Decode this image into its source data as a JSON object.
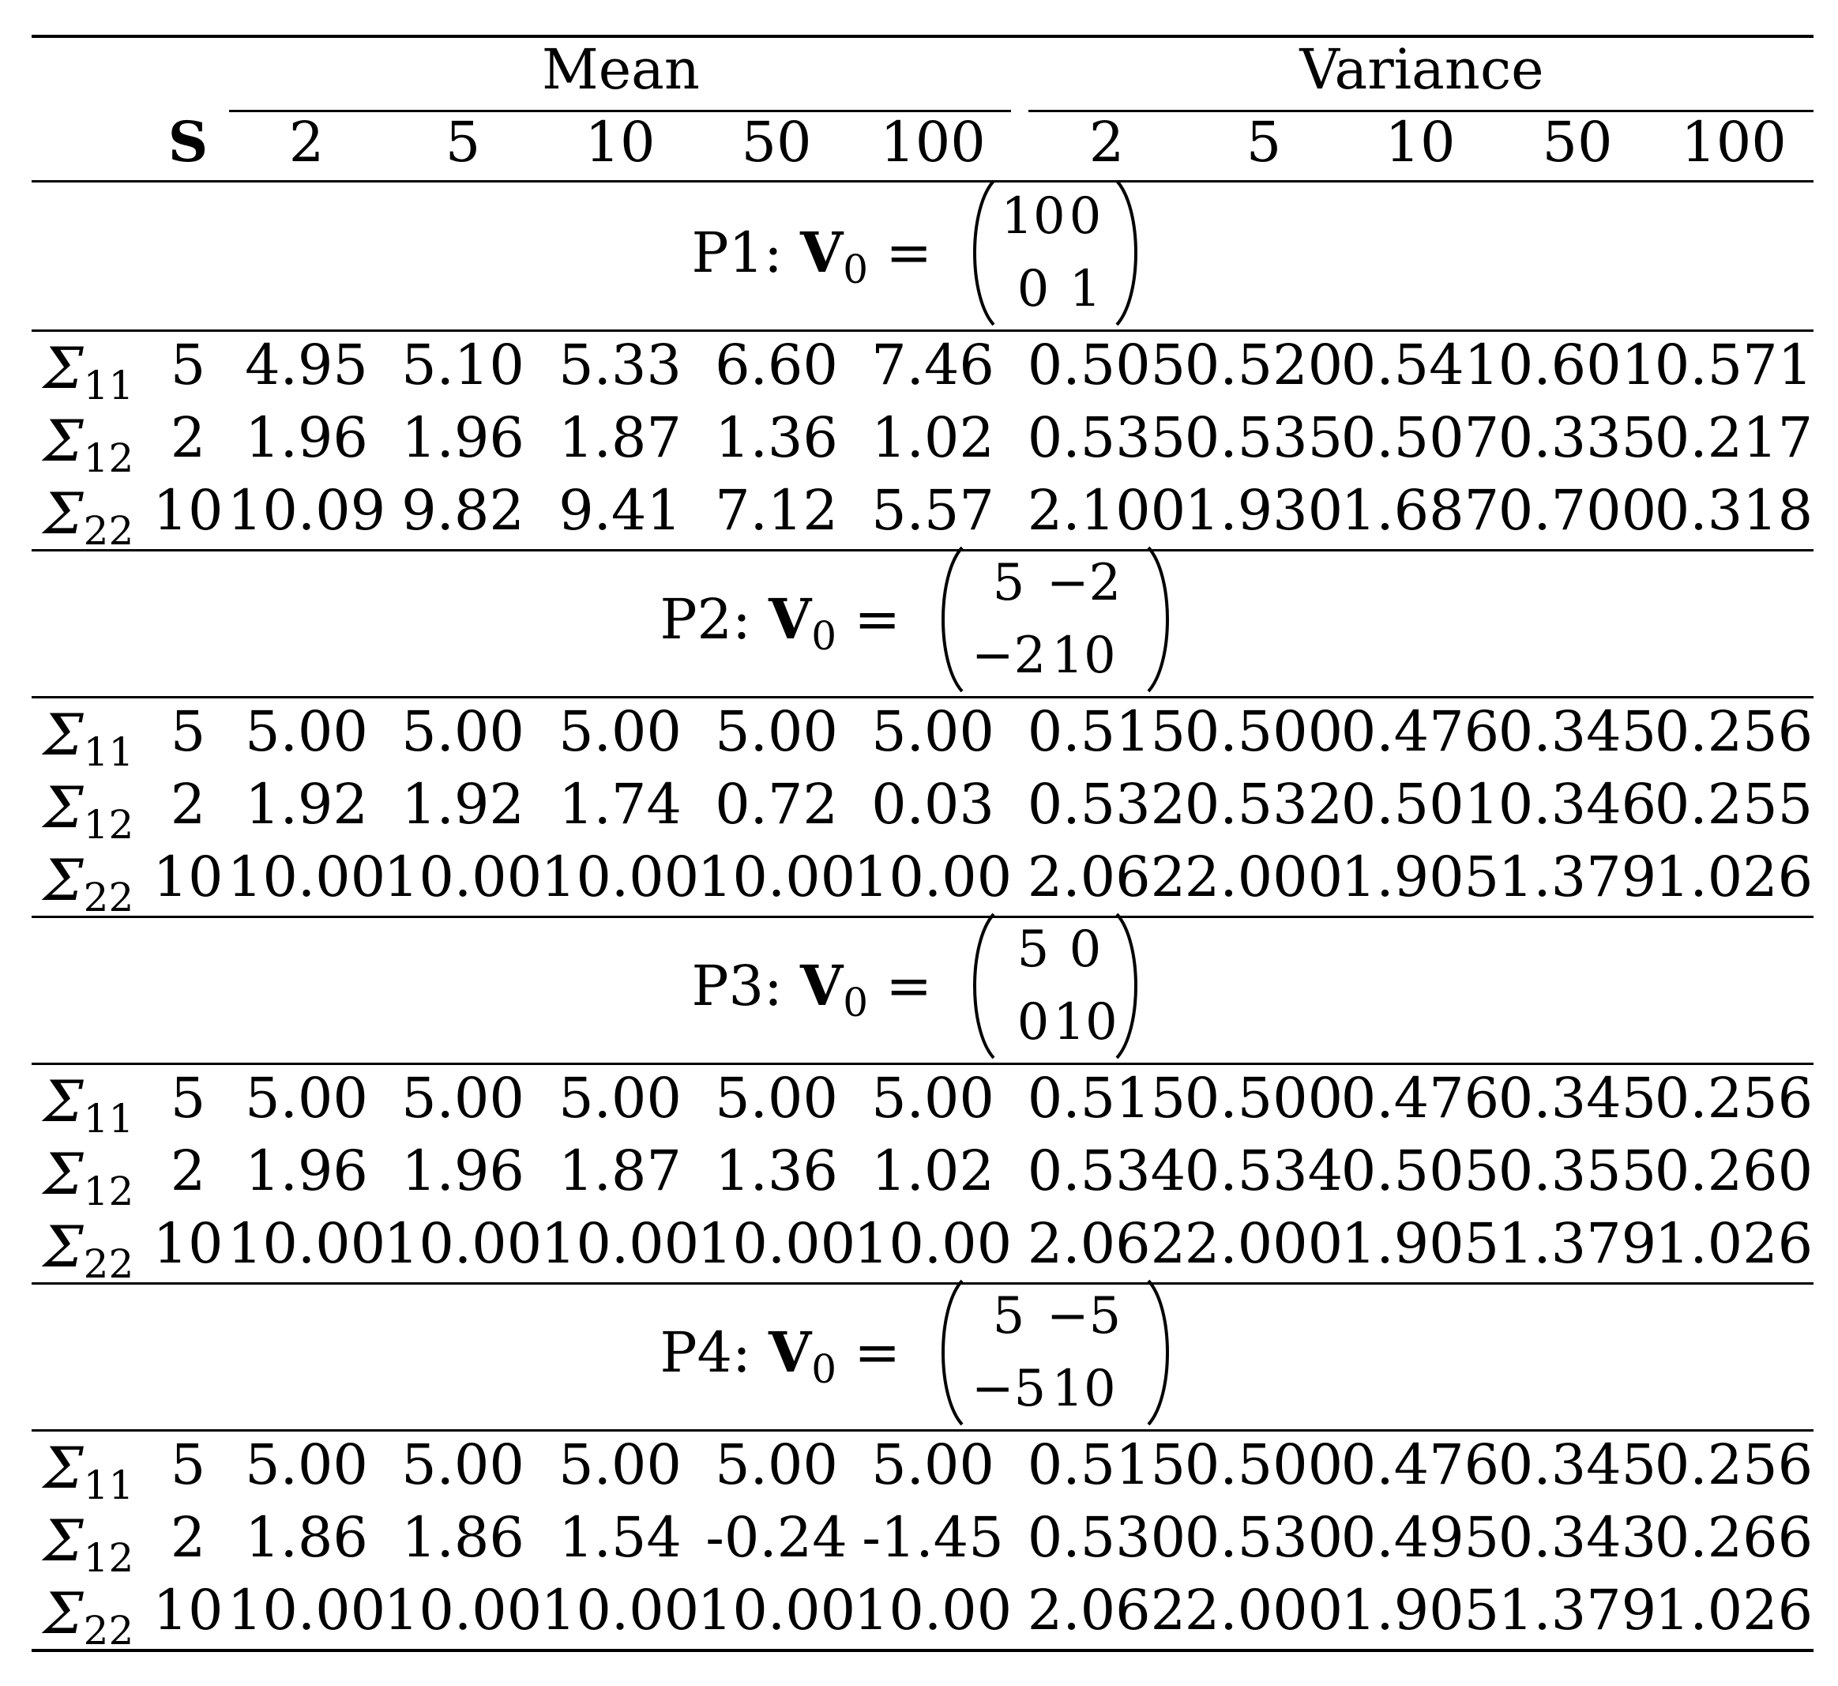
{
  "header": {
    "groups": [
      "Mean",
      "Variance"
    ],
    "s_label": "S",
    "columns": [
      "2",
      "5",
      "10",
      "50",
      "100",
      "2",
      "5",
      "10",
      "50",
      "100"
    ]
  },
  "row_labels": [
    {
      "sym": "Σ",
      "sub": "11"
    },
    {
      "sym": "Σ",
      "sub": "12"
    },
    {
      "sym": "Σ",
      "sub": "22"
    }
  ],
  "panels": [
    {
      "label": "P1:",
      "v_symbol": "V",
      "v_sub": "0",
      "equals": "=",
      "matrix": [
        [
          "10",
          "0"
        ],
        [
          "0",
          "1"
        ]
      ],
      "rows": [
        [
          "5",
          "4.95",
          "5.10",
          "5.33",
          "6.60",
          "7.46",
          "0.505",
          "0.520",
          "0.541",
          "0.601",
          "0.571"
        ],
        [
          "2",
          "1.96",
          "1.96",
          "1.87",
          "1.36",
          "1.02",
          "0.535",
          "0.535",
          "0.507",
          "0.335",
          "0.217"
        ],
        [
          "10",
          "10.09",
          "9.82",
          "9.41",
          "7.12",
          "5.57",
          "2.100",
          "1.930",
          "1.687",
          "0.700",
          "0.318"
        ]
      ]
    },
    {
      "label": "P2:",
      "v_symbol": "V",
      "v_sub": "0",
      "equals": "=",
      "matrix": [
        [
          "5",
          "−2"
        ],
        [
          "−2",
          "10"
        ]
      ],
      "rows": [
        [
          "5",
          "5.00",
          "5.00",
          "5.00",
          "5.00",
          "5.00",
          "0.515",
          "0.500",
          "0.476",
          "0.345",
          "0.256"
        ],
        [
          "2",
          "1.92",
          "1.92",
          "1.74",
          "0.72",
          "0.03",
          "0.532",
          "0.532",
          "0.501",
          "0.346",
          "0.255"
        ],
        [
          "10",
          "10.00",
          "10.00",
          "10.00",
          "10.00",
          "10.00",
          "2.062",
          "2.000",
          "1.905",
          "1.379",
          "1.026"
        ]
      ]
    },
    {
      "label": "P3:",
      "v_symbol": "V",
      "v_sub": "0",
      "equals": "=",
      "matrix": [
        [
          "5",
          "0"
        ],
        [
          "0",
          "10"
        ]
      ],
      "rows": [
        [
          "5",
          "5.00",
          "5.00",
          "5.00",
          "5.00",
          "5.00",
          "0.515",
          "0.500",
          "0.476",
          "0.345",
          "0.256"
        ],
        [
          "2",
          "1.96",
          "1.96",
          "1.87",
          "1.36",
          "1.02",
          "0.534",
          "0.534",
          "0.505",
          "0.355",
          "0.260"
        ],
        [
          "10",
          "10.00",
          "10.00",
          "10.00",
          "10.00",
          "10.00",
          "2.062",
          "2.000",
          "1.905",
          "1.379",
          "1.026"
        ]
      ]
    },
    {
      "label": "P4:",
      "v_symbol": "V",
      "v_sub": "0",
      "equals": "=",
      "matrix": [
        [
          "5",
          "−5"
        ],
        [
          "−5",
          "10"
        ]
      ],
      "rows": [
        [
          "5",
          "5.00",
          "5.00",
          "5.00",
          "5.00",
          "5.00",
          "0.515",
          "0.500",
          "0.476",
          "0.345",
          "0.256"
        ],
        [
          "2",
          "1.86",
          "1.86",
          "1.54",
          "-0.24",
          "-1.45",
          "0.530",
          "0.530",
          "0.495",
          "0.343",
          "0.266"
        ],
        [
          "10",
          "10.00",
          "10.00",
          "10.00",
          "10.00",
          "10.00",
          "2.062",
          "2.000",
          "1.905",
          "1.379",
          "1.026"
        ]
      ]
    }
  ]
}
